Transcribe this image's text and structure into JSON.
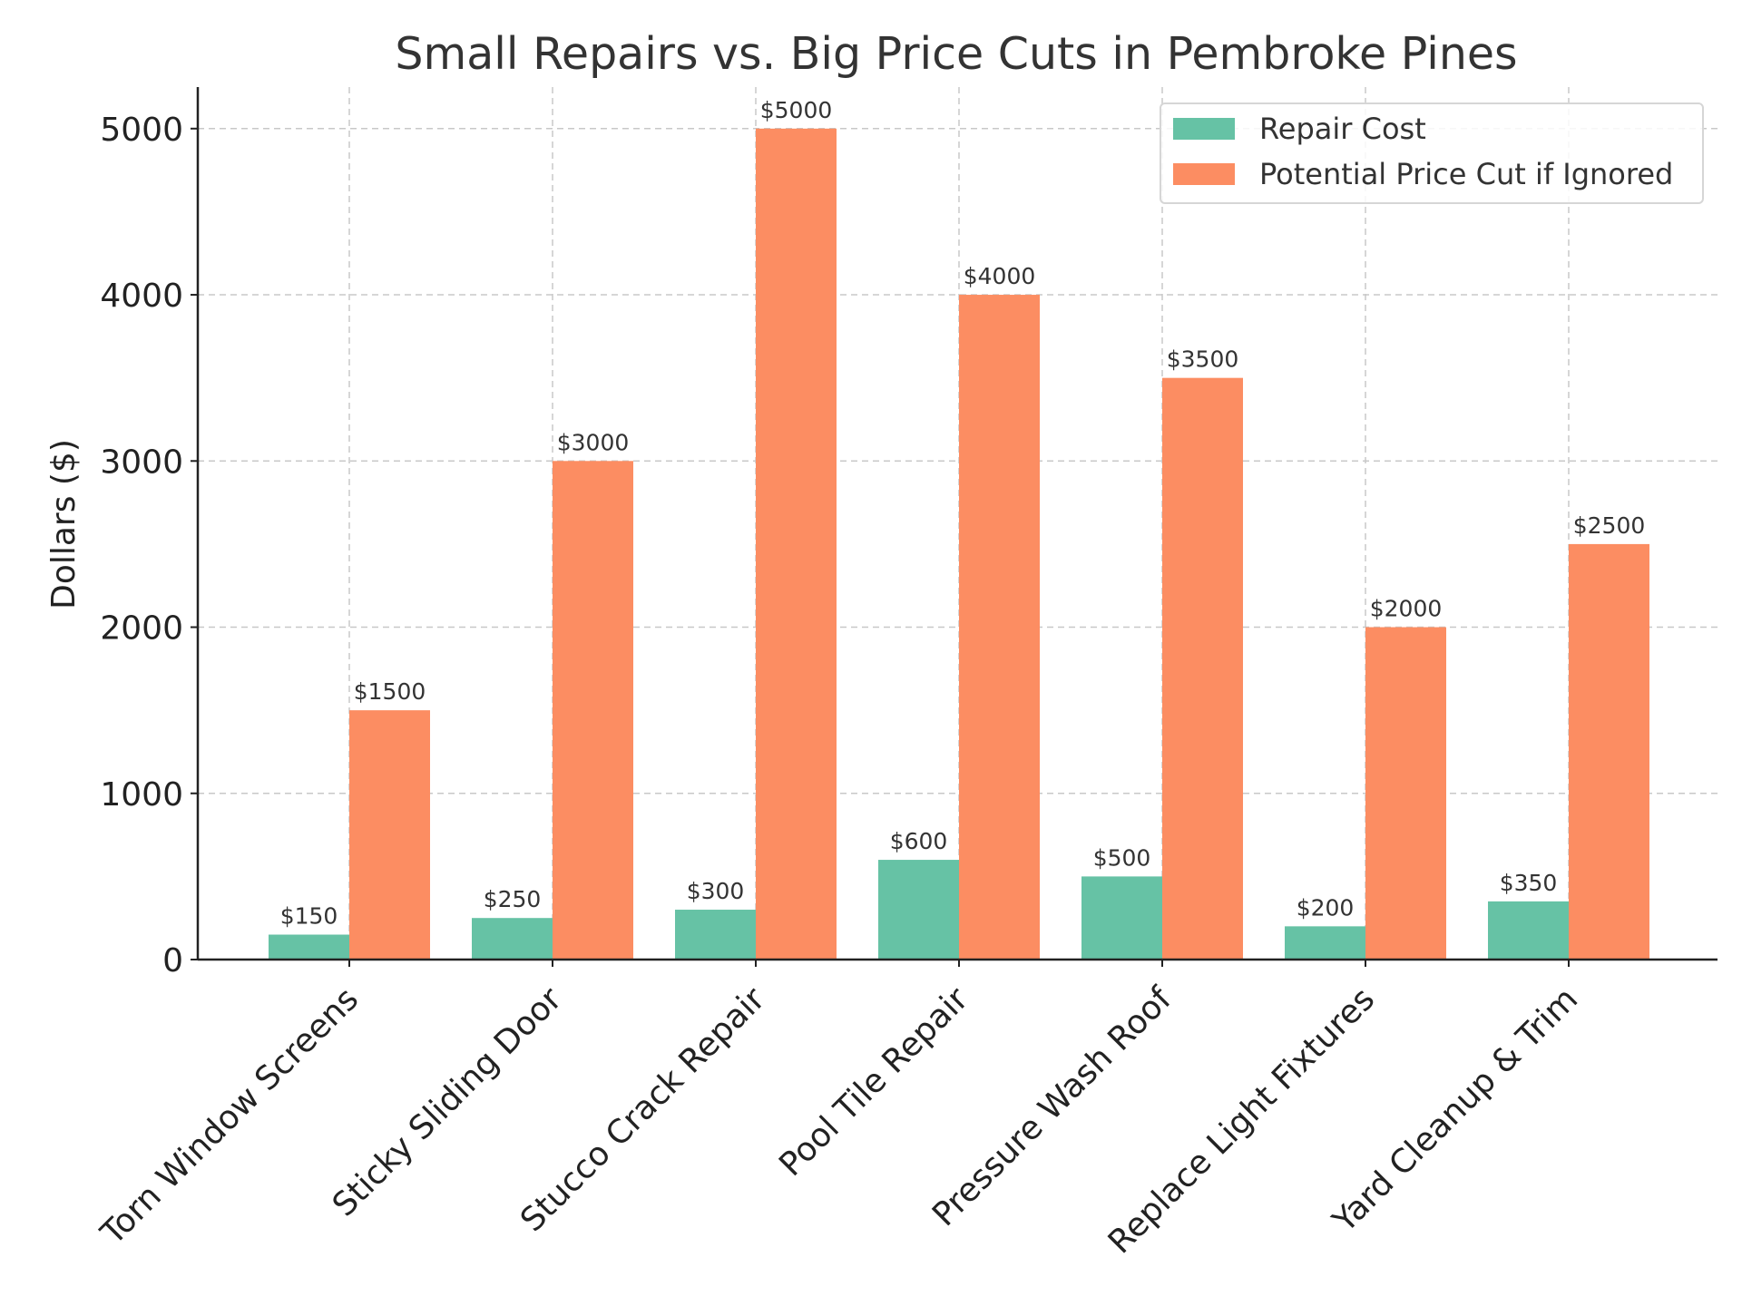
{
  "chart_data": {
    "type": "bar",
    "title": "Small Repairs vs. Big Price Cuts in Pembroke Pines",
    "xlabel": "",
    "ylabel": "Dollars ($)",
    "ylim": [
      0,
      5250
    ],
    "yticks": [
      0,
      1000,
      2000,
      3000,
      4000,
      5000
    ],
    "grid": true,
    "legend_position": "top-right",
    "categories": [
      "Torn Window Screens",
      "Sticky Sliding Door",
      "Stucco Crack Repair",
      "Pool Tile Repair",
      "Pressure Wash Roof",
      "Replace Light Fixtures",
      "Yard Cleanup & Trim"
    ],
    "series": [
      {
        "name": "Repair Cost",
        "color": "#66c2a5",
        "values": [
          150,
          250,
          300,
          600,
          500,
          200,
          350
        ],
        "labels": [
          "$150",
          "$250",
          "$300",
          "$600",
          "$500",
          "$200",
          "$350"
        ]
      },
      {
        "name": "Potential Price Cut if Ignored",
        "color": "#fc8d62",
        "values": [
          1500,
          3000,
          5000,
          4000,
          3500,
          2000,
          2500
        ],
        "labels": [
          "$1500",
          "$3000",
          "$5000",
          "$4000",
          "$3500",
          "$2000",
          "$2500"
        ]
      }
    ]
  }
}
